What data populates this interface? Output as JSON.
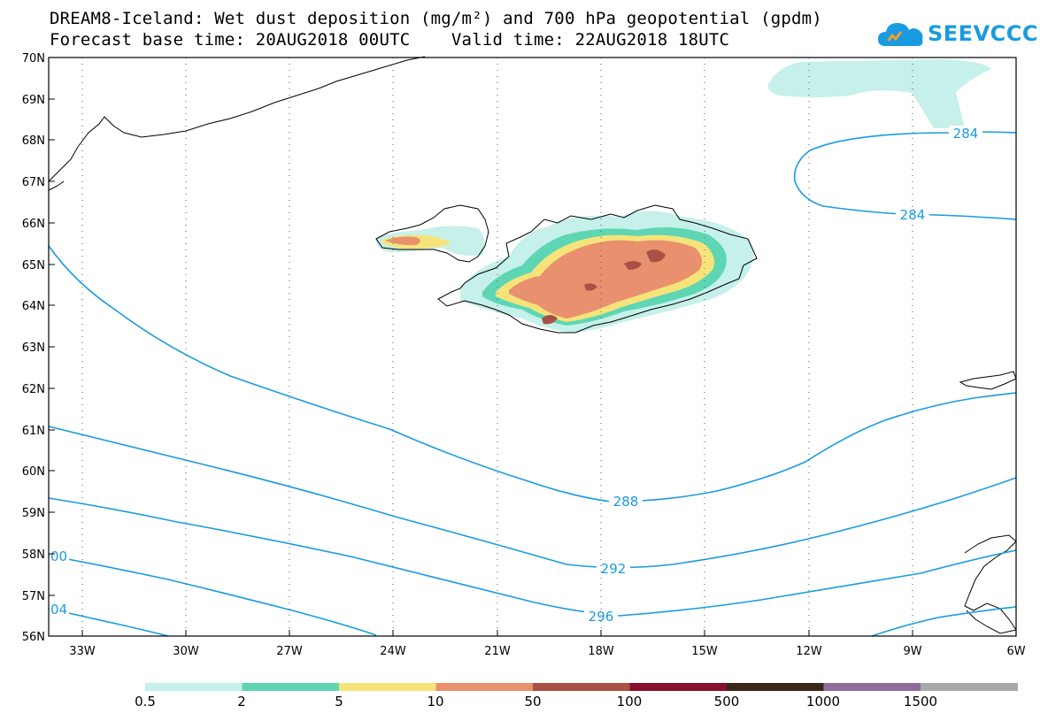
{
  "title_line1": "DREAM8-Iceland: Wet dust deposition (mg/m²) and 700 hPa geopotential (gpdm)",
  "title_line2": "Forecast base time: 20AUG2018 00UTC    Valid time: 22AUG2018 18UTC",
  "logo_text": "SEEVCCC",
  "lat_labels": [
    "70N",
    "69N",
    "68N",
    "67N",
    "66N",
    "65N",
    "64N",
    "63N",
    "62N",
    "61N",
    "60N",
    "59N",
    "58N",
    "57N",
    "56N"
  ],
  "lon_labels": [
    "33W",
    "30W",
    "27W",
    "24W",
    "21W",
    "18W",
    "15W",
    "12W",
    "9W",
    "6W"
  ],
  "contour_labels": [
    "284",
    "284",
    "288",
    "292",
    "296",
    "00",
    "04"
  ],
  "legend": {
    "colors": [
      "#c6f0ea",
      "#5ed6b4",
      "#f6e47a",
      "#e9906e",
      "#a95145",
      "#880f2e",
      "#3a261a",
      "#8f6c9a",
      "#a8a8a8"
    ],
    "labels": [
      "0.5",
      "2",
      "5",
      "10",
      "50",
      "100",
      "500",
      "1000",
      "1500"
    ]
  },
  "colors": {
    "contour": "#1a9be0",
    "coast": "#000000",
    "grid": "#555555"
  }
}
